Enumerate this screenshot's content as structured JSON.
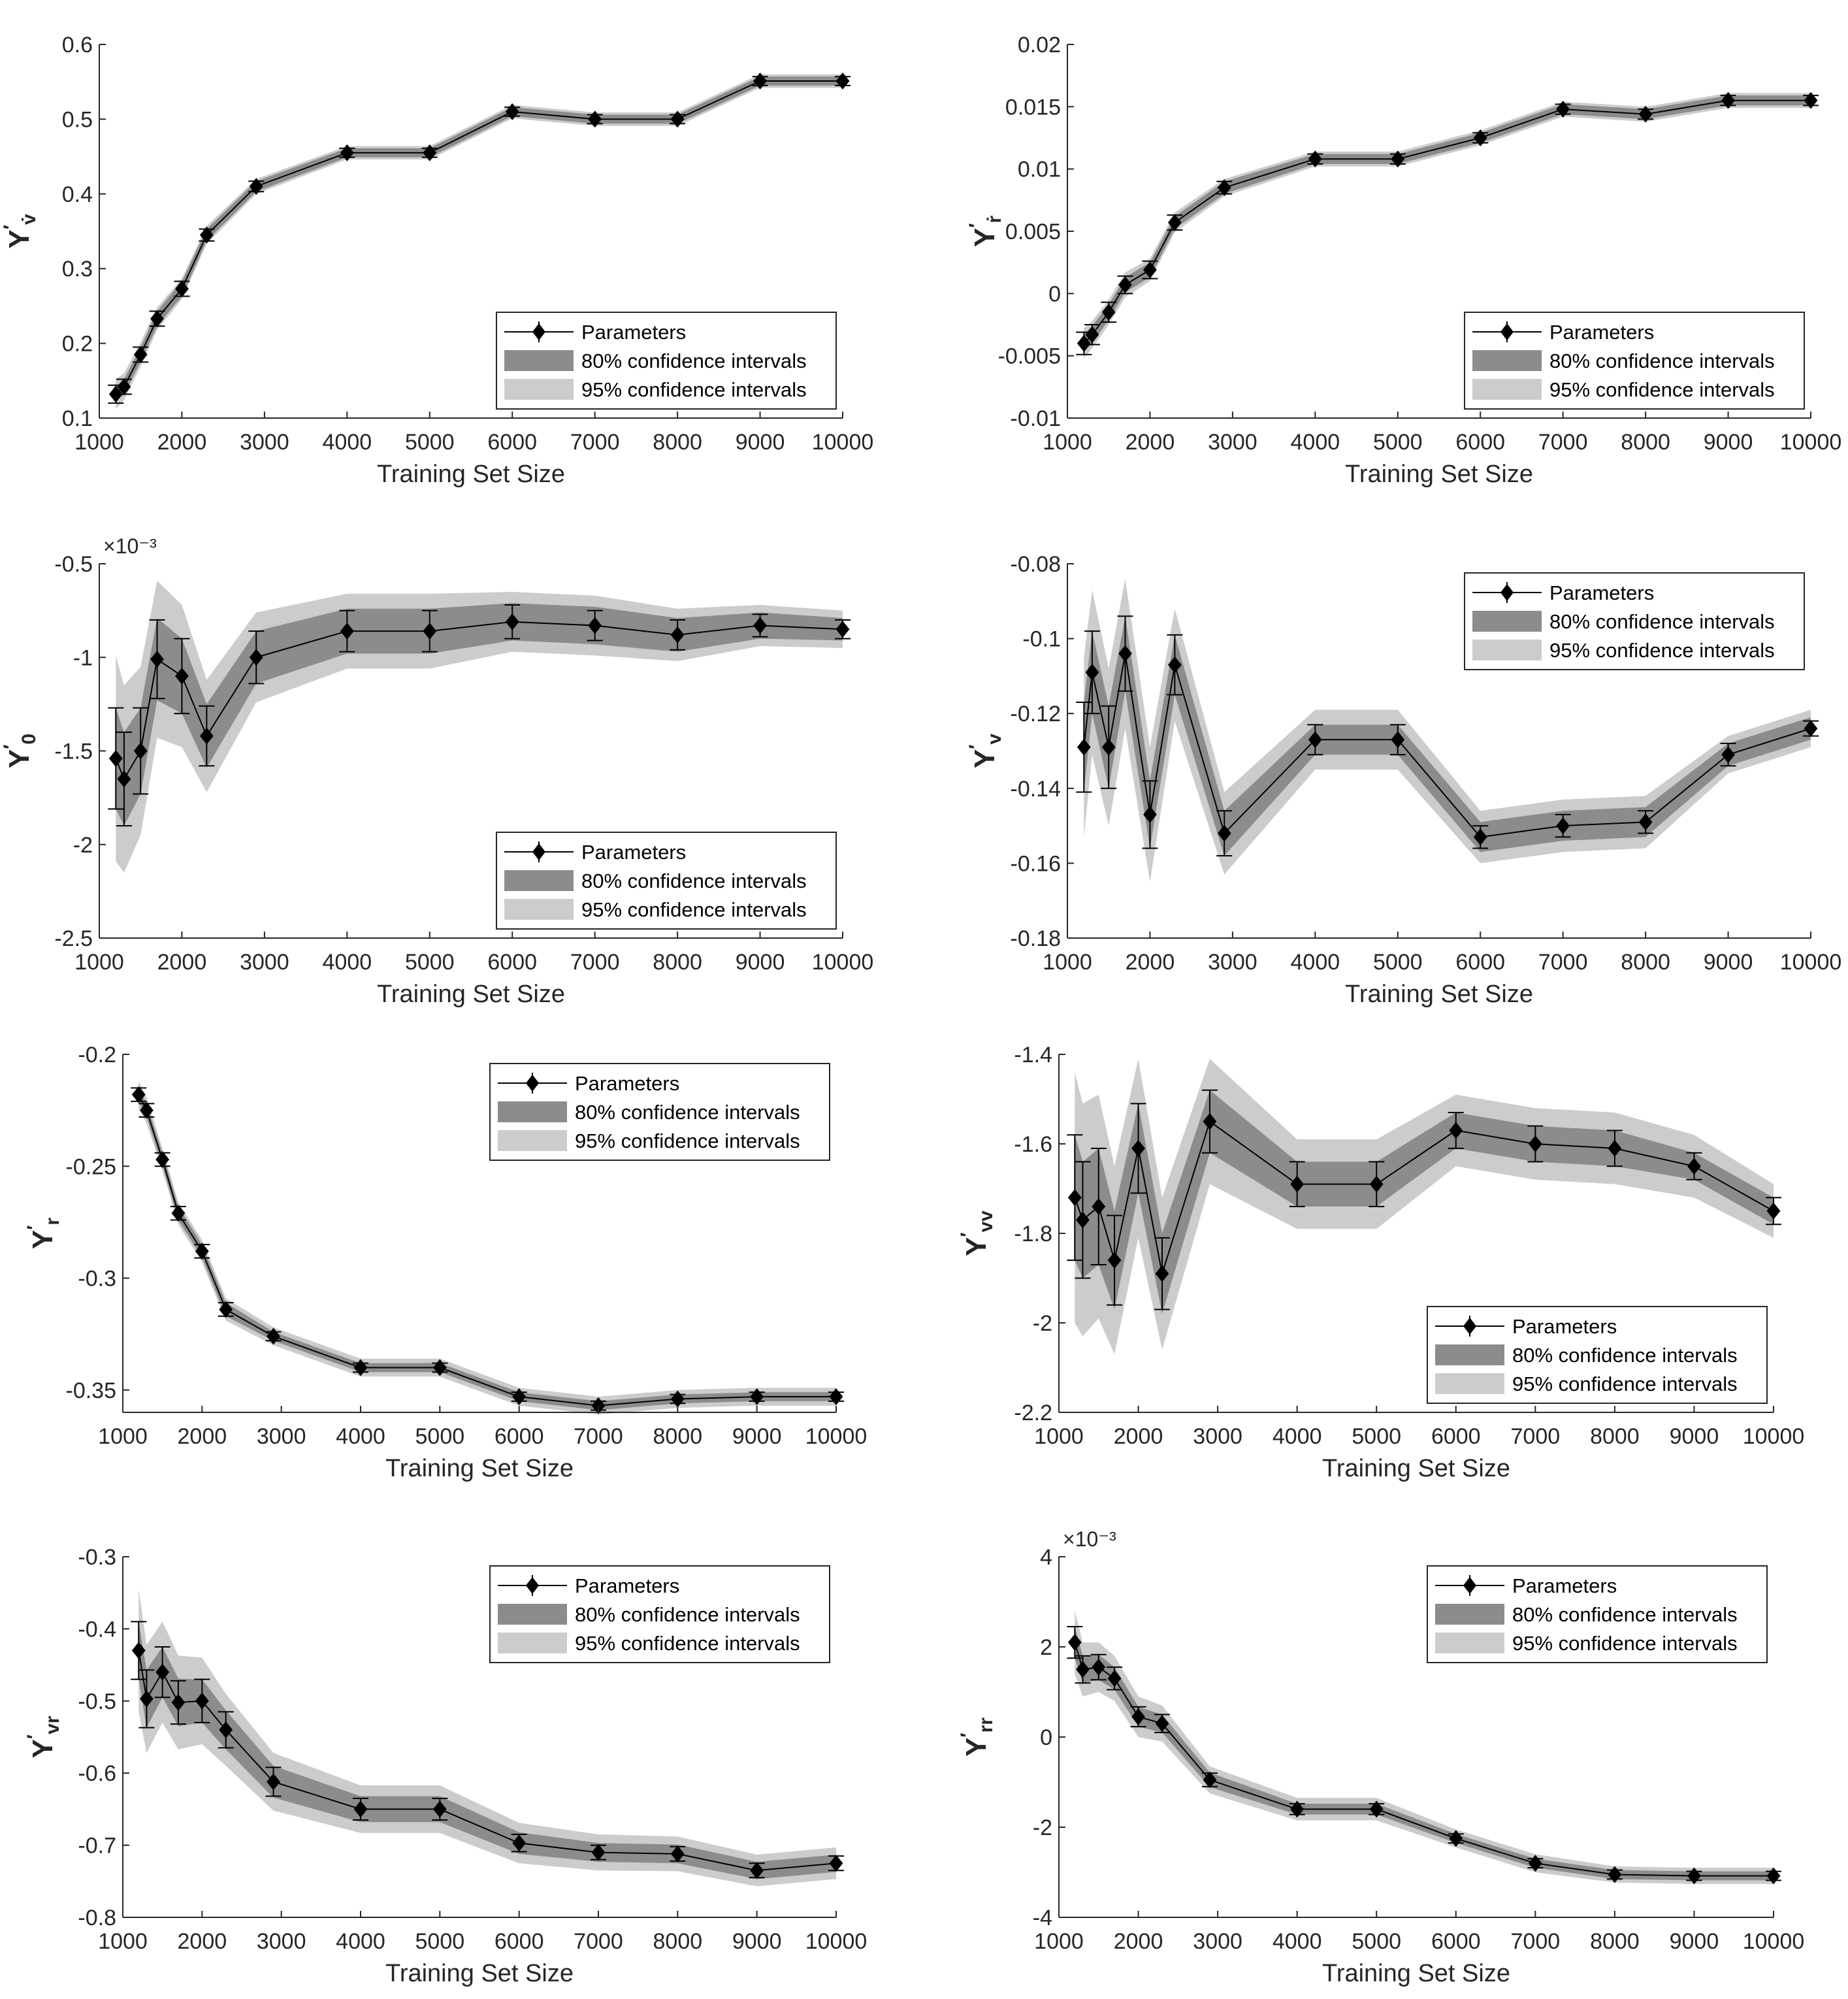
{
  "figure": {
    "legend": {
      "params": "Parameters",
      "ci80": "80% confidence intervals",
      "ci95": "95% confidence intervals"
    },
    "colors": {
      "ci80": "#8c8c8c",
      "ci95": "#cccccc",
      "line": "#000000"
    }
  },
  "chart_data": [
    {
      "type": "line",
      "id": "yvdot",
      "ylabel_main": "Y",
      "ylabel_sub": "v̇",
      "xlabel": "Training Set Size",
      "xlim": [
        1000,
        10000
      ],
      "ylim": [
        0.1,
        0.6
      ],
      "xticks": [
        1000,
        2000,
        3000,
        4000,
        5000,
        6000,
        7000,
        8000,
        9000,
        10000
      ],
      "yticks": [
        0.1,
        0.2,
        0.3,
        0.4,
        0.5,
        0.6
      ],
      "yticklabels": [
        "0.1",
        "0.2",
        "0.3",
        "0.4",
        "0.5",
        "0.6"
      ],
      "exponent": "",
      "legend_position": "bottom-right",
      "x": [
        1200,
        1300,
        1500,
        1700,
        2000,
        2300,
        2900,
        4000,
        5000,
        6000,
        7000,
        8000,
        9000,
        10000
      ],
      "y": [
        0.132,
        0.142,
        0.185,
        0.233,
        0.273,
        0.345,
        0.41,
        0.455,
        0.455,
        0.51,
        0.5,
        0.5,
        0.551,
        0.551
      ],
      "err": [
        0.012,
        0.01,
        0.01,
        0.01,
        0.01,
        0.008,
        0.007,
        0.006,
        0.006,
        0.006,
        0.006,
        0.006,
        0.006,
        0.006
      ],
      "ci80": [
        0.01,
        0.01,
        0.01,
        0.01,
        0.01,
        0.008,
        0.007,
        0.006,
        0.006,
        0.006,
        0.006,
        0.006,
        0.006,
        0.006
      ],
      "ci95": [
        0.02,
        0.018,
        0.016,
        0.015,
        0.014,
        0.012,
        0.01,
        0.009,
        0.009,
        0.009,
        0.009,
        0.009,
        0.009,
        0.009
      ]
    },
    {
      "type": "line",
      "id": "yrdot",
      "ylabel_main": "Y",
      "ylabel_sub": "ṙ",
      "xlabel": "Training Set Size",
      "xlim": [
        1000,
        10000
      ],
      "ylim": [
        -0.01,
        0.02
      ],
      "xticks": [
        1000,
        2000,
        3000,
        4000,
        5000,
        6000,
        7000,
        8000,
        9000,
        10000
      ],
      "yticks": [
        -0.01,
        -0.005,
        0,
        0.005,
        0.01,
        0.015,
        0.02
      ],
      "yticklabels": [
        "-0.01",
        "-0.005",
        "0",
        "0.005",
        "0.01",
        "0.015",
        "0.02"
      ],
      "exponent": "",
      "legend_position": "bottom-right",
      "x": [
        1200,
        1300,
        1500,
        1700,
        2000,
        2300,
        2900,
        4000,
        5000,
        6000,
        7000,
        8000,
        9000,
        10000
      ],
      "y": [
        -0.004,
        -0.0033,
        -0.0015,
        0.0007,
        0.0019,
        0.0057,
        0.0085,
        0.0108,
        0.0108,
        0.0125,
        0.0148,
        0.0144,
        0.0155,
        0.0155
      ],
      "err": [
        0.0009,
        0.0008,
        0.0008,
        0.0007,
        0.0007,
        0.0006,
        0.0005,
        0.0004,
        0.0004,
        0.0004,
        0.0004,
        0.0004,
        0.0004,
        0.0004
      ],
      "ci80": [
        0.0007,
        0.0007,
        0.0006,
        0.0006,
        0.0006,
        0.0005,
        0.0005,
        0.0004,
        0.0004,
        0.0004,
        0.0004,
        0.0004,
        0.0004,
        0.0004
      ],
      "ci95": [
        0.0012,
        0.0011,
        0.001,
        0.001,
        0.0009,
        0.0008,
        0.0007,
        0.0006,
        0.0006,
        0.0006,
        0.0006,
        0.0006,
        0.0006,
        0.0006
      ]
    },
    {
      "type": "line",
      "id": "y0",
      "ylabel_main": "Y",
      "ylabel_sub": "0",
      "xlabel": "Training Set Size",
      "xlim": [
        1000,
        10000
      ],
      "ylim": [
        -2.5,
        -0.5
      ],
      "xticks": [
        1000,
        2000,
        3000,
        4000,
        5000,
        6000,
        7000,
        8000,
        9000,
        10000
      ],
      "yticks": [
        -2.5,
        -2,
        -1.5,
        -1,
        -0.5
      ],
      "yticklabels": [
        "-2.5",
        "-2",
        "-1.5",
        "-1",
        "-0.5"
      ],
      "exponent": "×10⁻³",
      "legend_position": "bottom-right",
      "x": [
        1200,
        1300,
        1500,
        1700,
        2000,
        2300,
        2900,
        4000,
        5000,
        6000,
        7000,
        8000,
        9000,
        10000
      ],
      "y": [
        -1.54,
        -1.65,
        -1.5,
        -1.01,
        -1.1,
        -1.42,
        -1.0,
        -0.86,
        -0.86,
        -0.81,
        -0.83,
        -0.88,
        -0.83,
        -0.85
      ],
      "err": [
        0.27,
        0.25,
        0.23,
        0.21,
        0.2,
        0.16,
        0.14,
        0.11,
        0.11,
        0.09,
        0.08,
        0.08,
        0.06,
        0.05
      ],
      "ci80": [
        0.27,
        0.25,
        0.23,
        0.22,
        0.2,
        0.17,
        0.14,
        0.12,
        0.12,
        0.1,
        0.1,
        0.09,
        0.07,
        0.06
      ],
      "ci95": [
        0.55,
        0.5,
        0.45,
        0.42,
        0.38,
        0.3,
        0.24,
        0.2,
        0.2,
        0.16,
        0.16,
        0.14,
        0.11,
        0.1
      ]
    },
    {
      "type": "line",
      "id": "yv",
      "ylabel_main": "Y",
      "ylabel_sub": "v",
      "xlabel": "Training Set Size",
      "xlim": [
        1000,
        10000
      ],
      "ylim": [
        -0.18,
        -0.08
      ],
      "xticks": [
        1000,
        2000,
        3000,
        4000,
        5000,
        6000,
        7000,
        8000,
        9000,
        10000
      ],
      "yticks": [
        -0.18,
        -0.16,
        -0.14,
        -0.12,
        -0.1,
        -0.08
      ],
      "yticklabels": [
        "-0.18",
        "-0.16",
        "-0.14",
        "-0.12",
        "-0.1",
        "-0.08"
      ],
      "exponent": "",
      "legend_position": "top-right",
      "x": [
        1200,
        1300,
        1500,
        1700,
        2000,
        2300,
        2900,
        4000,
        5000,
        6000,
        7000,
        8000,
        9000,
        10000
      ],
      "y": [
        -0.129,
        -0.109,
        -0.129,
        -0.104,
        -0.147,
        -0.107,
        -0.152,
        -0.127,
        -0.127,
        -0.153,
        -0.15,
        -0.149,
        -0.131,
        -0.124
      ],
      "err": [
        0.012,
        0.011,
        0.011,
        0.01,
        0.009,
        0.008,
        0.006,
        0.004,
        0.004,
        0.003,
        0.003,
        0.003,
        0.003,
        0.002
      ],
      "ci80": [
        0.012,
        0.011,
        0.011,
        0.01,
        0.009,
        0.008,
        0.006,
        0.004,
        0.004,
        0.004,
        0.004,
        0.004,
        0.003,
        0.003
      ],
      "ci95": [
        0.024,
        0.022,
        0.021,
        0.02,
        0.018,
        0.015,
        0.011,
        0.008,
        0.008,
        0.007,
        0.007,
        0.007,
        0.005,
        0.005
      ]
    },
    {
      "type": "line",
      "id": "yr",
      "ylabel_main": "Y",
      "ylabel_sub": "r",
      "xlabel": "Training Set Size",
      "xlim": [
        1000,
        10000
      ],
      "ylim": [
        -0.36,
        -0.2
      ],
      "xticks": [
        1000,
        2000,
        3000,
        4000,
        5000,
        6000,
        7000,
        8000,
        9000,
        10000
      ],
      "yticks": [
        -0.35,
        -0.3,
        -0.25,
        -0.2
      ],
      "yticklabels": [
        "-0.35",
        "-0.3",
        "-0.25",
        "-0.2"
      ],
      "exponent": "",
      "legend_position": "top-right",
      "x": [
        1200,
        1300,
        1500,
        1700,
        2000,
        2300,
        2900,
        4000,
        5000,
        6000,
        7000,
        8000,
        9000,
        10000
      ],
      "y": [
        -0.218,
        -0.225,
        -0.247,
        -0.271,
        -0.288,
        -0.314,
        -0.326,
        -0.34,
        -0.34,
        -0.353,
        -0.357,
        -0.354,
        -0.353,
        -0.353
      ],
      "err": [
        0.003,
        0.003,
        0.003,
        0.003,
        0.003,
        0.003,
        0.002,
        0.002,
        0.002,
        0.002,
        0.002,
        0.002,
        0.002,
        0.002
      ],
      "ci80": [
        0.003,
        0.003,
        0.003,
        0.003,
        0.003,
        0.003,
        0.002,
        0.002,
        0.002,
        0.002,
        0.002,
        0.002,
        0.002,
        0.002
      ],
      "ci95": [
        0.006,
        0.006,
        0.005,
        0.005,
        0.005,
        0.005,
        0.004,
        0.004,
        0.004,
        0.004,
        0.004,
        0.004,
        0.004,
        0.004
      ]
    },
    {
      "type": "line",
      "id": "yvv",
      "ylabel_main": "Y",
      "ylabel_sub": "vv",
      "xlabel": "Training Set Size",
      "xlim": [
        1000,
        10000
      ],
      "ylim": [
        -2.2,
        -1.4
      ],
      "xticks": [
        1000,
        2000,
        3000,
        4000,
        5000,
        6000,
        7000,
        8000,
        9000,
        10000
      ],
      "yticks": [
        -2.2,
        -2,
        -1.8,
        -1.6,
        -1.4
      ],
      "yticklabels": [
        "-2.2",
        "-2",
        "-1.8",
        "-1.6",
        "-1.4"
      ],
      "exponent": "",
      "legend_position": "bottom-right",
      "x": [
        1200,
        1300,
        1500,
        1700,
        2000,
        2300,
        2900,
        4000,
        5000,
        6000,
        7000,
        8000,
        9000,
        10000
      ],
      "y": [
        -1.72,
        -1.77,
        -1.74,
        -1.86,
        -1.61,
        -1.89,
        -1.55,
        -1.69,
        -1.69,
        -1.57,
        -1.6,
        -1.61,
        -1.65,
        -1.75
      ],
      "err": [
        0.14,
        0.13,
        0.13,
        0.1,
        0.1,
        0.08,
        0.07,
        0.05,
        0.05,
        0.04,
        0.04,
        0.04,
        0.03,
        0.03
      ],
      "ci80": [
        0.14,
        0.13,
        0.13,
        0.11,
        0.1,
        0.09,
        0.07,
        0.05,
        0.05,
        0.04,
        0.04,
        0.04,
        0.03,
        0.03
      ],
      "ci95": [
        0.28,
        0.26,
        0.25,
        0.21,
        0.2,
        0.17,
        0.14,
        0.1,
        0.1,
        0.08,
        0.08,
        0.08,
        0.07,
        0.06
      ]
    },
    {
      "type": "line",
      "id": "yvr",
      "ylabel_main": "Y",
      "ylabel_sub": "vr",
      "xlabel": "Training Set Size",
      "xlim": [
        1000,
        10000
      ],
      "ylim": [
        -0.8,
        -0.3
      ],
      "xticks": [
        1000,
        2000,
        3000,
        4000,
        5000,
        6000,
        7000,
        8000,
        9000,
        10000
      ],
      "yticks": [
        -0.8,
        -0.7,
        -0.6,
        -0.5,
        -0.4,
        -0.3
      ],
      "yticklabels": [
        "-0.8",
        "-0.7",
        "-0.6",
        "-0.5",
        "-0.4",
        "-0.3"
      ],
      "exponent": "",
      "legend_position": "top-right",
      "x": [
        1200,
        1300,
        1500,
        1700,
        2000,
        2300,
        2900,
        4000,
        5000,
        6000,
        7000,
        8000,
        9000,
        10000
      ],
      "y": [
        -0.43,
        -0.497,
        -0.46,
        -0.502,
        -0.5,
        -0.54,
        -0.612,
        -0.65,
        -0.65,
        -0.697,
        -0.71,
        -0.712,
        -0.735,
        -0.725
      ],
      "err": [
        0.04,
        0.04,
        0.035,
        0.03,
        0.03,
        0.025,
        0.02,
        0.015,
        0.015,
        0.012,
        0.01,
        0.01,
        0.01,
        0.01
      ],
      "ci80": [
        0.04,
        0.04,
        0.035,
        0.033,
        0.03,
        0.027,
        0.022,
        0.018,
        0.018,
        0.015,
        0.013,
        0.013,
        0.012,
        0.012
      ],
      "ci95": [
        0.085,
        0.075,
        0.07,
        0.065,
        0.06,
        0.05,
        0.04,
        0.033,
        0.033,
        0.028,
        0.025,
        0.024,
        0.022,
        0.022
      ]
    },
    {
      "type": "line",
      "id": "yrr",
      "ylabel_main": "Y",
      "ylabel_sub": "rr",
      "xlabel": "Training Set Size",
      "xlim": [
        1000,
        10000
      ],
      "ylim": [
        -4,
        4
      ],
      "xticks": [
        1000,
        2000,
        3000,
        4000,
        5000,
        6000,
        7000,
        8000,
        9000,
        10000
      ],
      "yticks": [
        -4,
        -2,
        0,
        2,
        4
      ],
      "yticklabels": [
        "-4",
        "-2",
        "0",
        "2",
        "4"
      ],
      "exponent": "×10⁻³",
      "legend_position": "top-right",
      "x": [
        1200,
        1300,
        1500,
        1700,
        2000,
        2300,
        2900,
        4000,
        5000,
        6000,
        7000,
        8000,
        9000,
        10000
      ],
      "y": [
        2.1,
        1.5,
        1.55,
        1.3,
        0.45,
        0.3,
        -0.95,
        -1.6,
        -1.6,
        -2.25,
        -2.8,
        -3.05,
        -3.08,
        -3.08
      ],
      "err": [
        0.35,
        0.3,
        0.28,
        0.25,
        0.22,
        0.2,
        0.15,
        0.12,
        0.12,
        0.1,
        0.1,
        0.1,
        0.1,
        0.1
      ],
      "ci80": [
        0.35,
        0.3,
        0.28,
        0.25,
        0.22,
        0.2,
        0.16,
        0.12,
        0.12,
        0.1,
        0.1,
        0.1,
        0.1,
        0.1
      ],
      "ci95": [
        0.7,
        0.6,
        0.55,
        0.5,
        0.45,
        0.4,
        0.3,
        0.25,
        0.25,
        0.2,
        0.2,
        0.18,
        0.18,
        0.18
      ]
    }
  ]
}
